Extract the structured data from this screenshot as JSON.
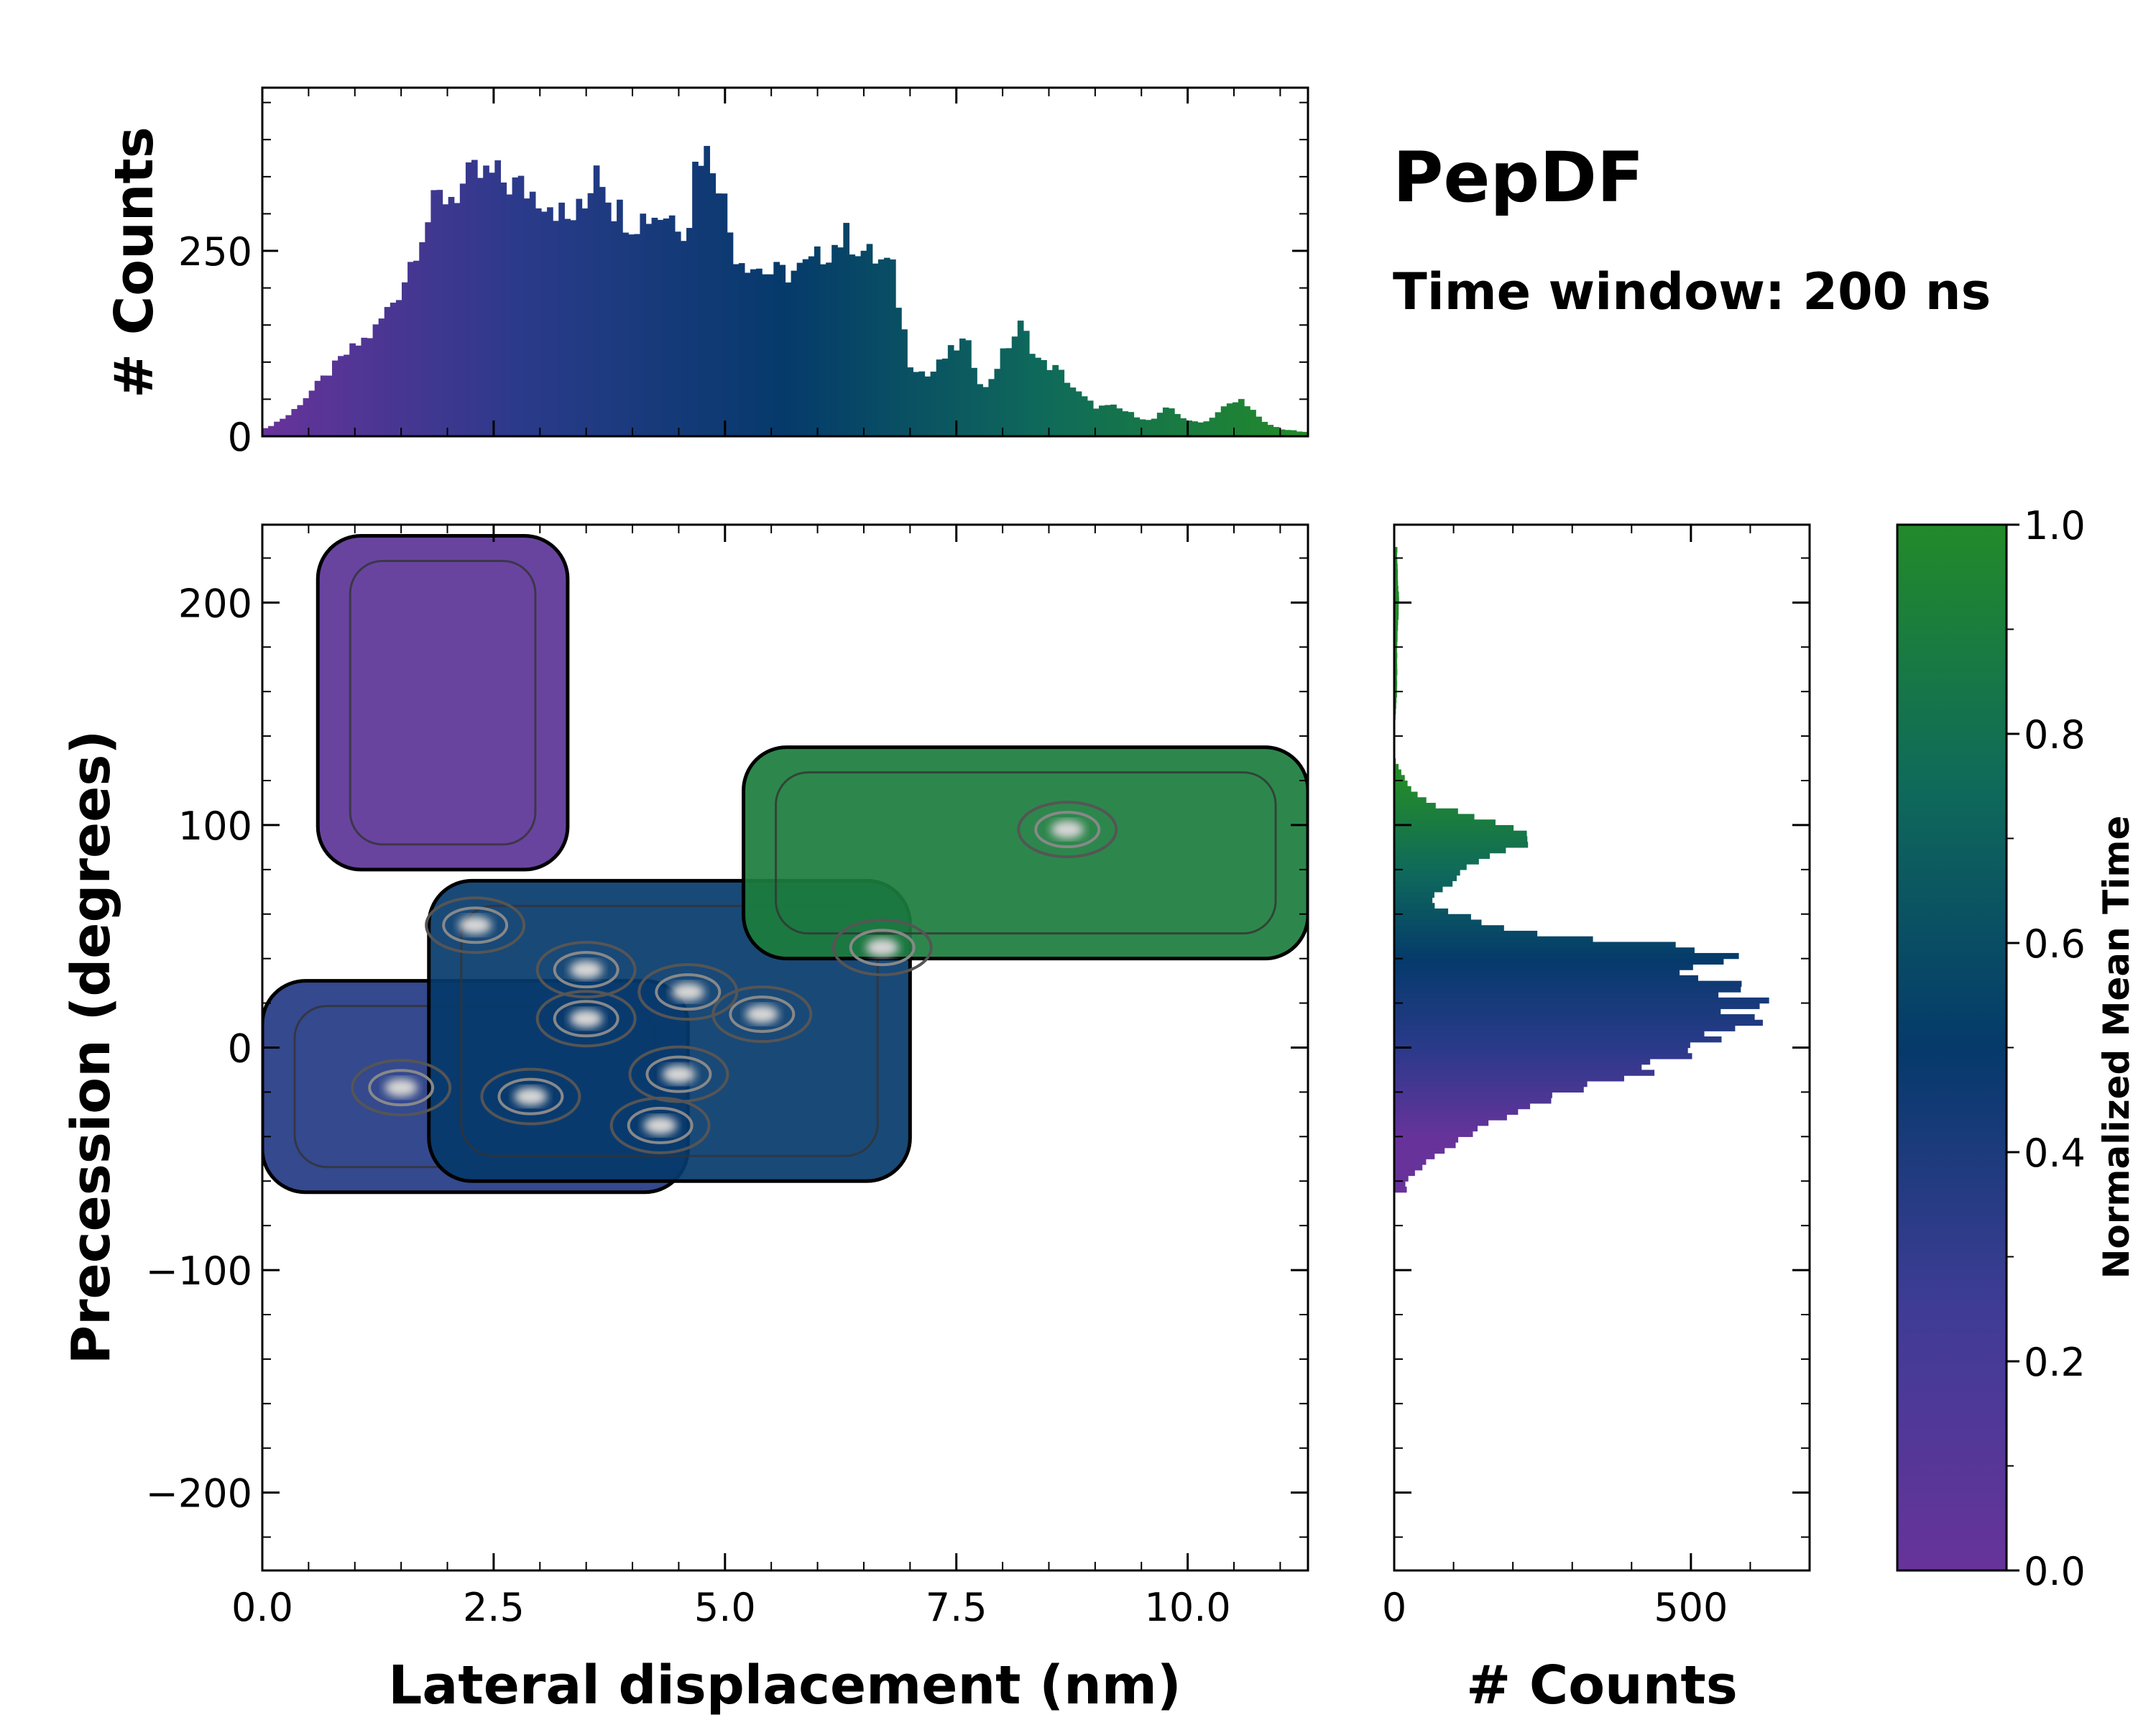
{
  "chart_data": [
    {
      "id": "top-histogram",
      "type": "bar",
      "title": "PepDF",
      "subtitle": "Time window: 200 ns",
      "xlabel": "",
      "ylabel": "# Counts",
      "xlim": [
        0,
        11.3
      ],
      "ylim": [
        0,
        470
      ],
      "yticks": [
        0,
        250
      ],
      "ytick_labels": [
        "0",
        "250"
      ],
      "color_by": "normalized mean time (purple to green along x)",
      "profile_x": [
        0.0,
        0.3,
        0.6,
        0.9,
        1.2,
        1.5,
        1.7,
        1.9,
        2.1,
        2.3,
        2.5,
        2.7,
        2.9,
        3.1,
        3.3,
        3.5,
        3.6,
        3.8,
        4.0,
        4.2,
        4.4,
        4.6,
        4.7,
        4.9,
        5.1,
        5.3,
        5.5,
        5.7,
        5.9,
        6.1,
        6.3,
        6.6,
        6.8,
        7.0,
        7.2,
        7.4,
        7.6,
        7.8,
        8.0,
        8.2,
        8.4,
        8.6,
        8.8,
        9.0,
        9.2,
        9.4,
        9.6,
        9.8,
        10.0,
        10.2,
        10.4,
        10.6,
        10.8,
        11.0,
        11.3
      ],
      "profile_y": [
        8,
        30,
        70,
        110,
        140,
        200,
        270,
        320,
        330,
        350,
        350,
        340,
        330,
        320,
        290,
        310,
        380,
        310,
        290,
        300,
        300,
        280,
        390,
        370,
        250,
        230,
        220,
        220,
        230,
        250,
        270,
        240,
        230,
        100,
        80,
        110,
        130,
        60,
        110,
        150,
        100,
        90,
        60,
        40,
        40,
        30,
        20,
        40,
        20,
        20,
        40,
        50,
        20,
        10,
        5
      ]
    },
    {
      "id": "main-heatmap",
      "type": "heatmap",
      "xlabel": "Lateral displacement (nm)",
      "ylabel": "Precession (degrees)",
      "xlim": [
        0,
        11.3
      ],
      "ylim": [
        -235,
        235
      ],
      "xticks": [
        0,
        2.5,
        5,
        7.5,
        10
      ],
      "xtick_labels": [
        "0.0",
        "2.5",
        "5.0",
        "7.5",
        "10.0"
      ],
      "yticks": [
        -200,
        -100,
        0,
        100,
        200
      ],
      "ytick_labels": [
        "−200",
        "−100",
        "0",
        "100",
        "200"
      ],
      "colorbar": {
        "label": "Normalized Mean Time",
        "range": [
          0.0,
          1.0
        ],
        "ticks": [
          0.0,
          0.2,
          0.4,
          0.6,
          0.8,
          1.0
        ],
        "tick_labels": [
          "0.0",
          "0.2",
          "0.4",
          "0.6",
          "0.8",
          "1.0"
        ],
        "colors": [
          "#67339a",
          "#2a3a8a",
          "#053a6b",
          "#0f6a5a",
          "#238a2a"
        ]
      },
      "density_clusters": [
        {
          "name": "upper-left purple region",
          "x_range": [
            0.6,
            3.3
          ],
          "y_range": [
            80,
            230
          ],
          "mean_time": 0.05
        },
        {
          "name": "main band lower",
          "x_range": [
            0.0,
            4.6
          ],
          "y_range": [
            -65,
            30
          ],
          "mean_time": 0.3
        },
        {
          "name": "main band middle",
          "x_range": [
            1.8,
            7.0
          ],
          "y_range": [
            -60,
            75
          ],
          "mean_time": 0.5
        },
        {
          "name": "upper-right green region",
          "x_range": [
            5.2,
            11.3
          ],
          "y_range": [
            40,
            135
          ],
          "mean_time": 0.9
        }
      ],
      "density_peaks": [
        {
          "x": 2.3,
          "y": 55
        },
        {
          "x": 3.5,
          "y": 35
        },
        {
          "x": 3.5,
          "y": 13
        },
        {
          "x": 4.6,
          "y": 25
        },
        {
          "x": 5.4,
          "y": 15
        },
        {
          "x": 6.7,
          "y": 45
        },
        {
          "x": 1.5,
          "y": -18
        },
        {
          "x": 2.9,
          "y": -22
        },
        {
          "x": 4.5,
          "y": -12
        },
        {
          "x": 4.3,
          "y": -35
        },
        {
          "x": 8.7,
          "y": 98
        }
      ]
    },
    {
      "id": "right-histogram",
      "type": "bar",
      "orientation": "horizontal",
      "xlabel": "# Counts",
      "ylabel": "",
      "xlim": [
        0,
        700
      ],
      "ylim": [
        -235,
        235
      ],
      "xticks": [
        0,
        500
      ],
      "xtick_labels": [
        "0",
        "500"
      ],
      "color_by": "normalized mean time",
      "profile_y": [
        -60,
        -50,
        -40,
        -30,
        -20,
        -10,
        0,
        5,
        10,
        15,
        20,
        25,
        30,
        35,
        40,
        45,
        50,
        55,
        60,
        65,
        70,
        75,
        80,
        85,
        90,
        95,
        100,
        105,
        110,
        115,
        120,
        125,
        130,
        140,
        160,
        180,
        200,
        220
      ],
      "profile_x": [
        20,
        60,
        120,
        200,
        280,
        430,
        520,
        520,
        600,
        580,
        620,
        560,
        560,
        460,
        560,
        530,
        250,
        160,
        110,
        60,
        70,
        100,
        120,
        140,
        220,
        240,
        180,
        120,
        60,
        30,
        20,
        10,
        0,
        0,
        5,
        5,
        8,
        5
      ]
    }
  ]
}
